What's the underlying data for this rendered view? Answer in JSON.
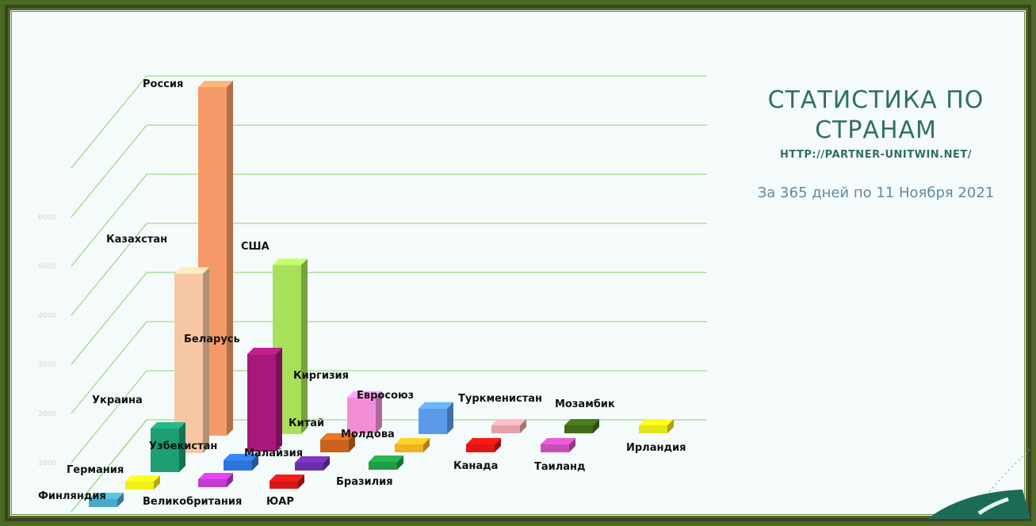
{
  "slide": {
    "title": "СТАТИСТИКА ПО СТРАНАМ",
    "url": "HTTP://PARTNER-UNITWIN.NET/",
    "period": "За 365 дней по 11 Ноября 2021"
  },
  "colors": {
    "frame_outer": "#4a6b22",
    "frame_mid": "#3f3f24",
    "background": "#f4fbfa",
    "gridline": "#8fcf6a",
    "title_text": "#2f6f66",
    "subtitle_text": "#6189a0",
    "accent_logo": "#1c6b57"
  },
  "chart_data": {
    "type": "bar",
    "style": "3d-perspective",
    "title": "",
    "xlabel": "",
    "ylabel": "",
    "ylim": [
      0,
      7000
    ],
    "grid": true,
    "legend": "none",
    "y_ticks": [
      0,
      1000,
      2000,
      3000,
      4000,
      5000,
      6000,
      7000
    ],
    "bars": [
      {
        "category": "Финляндия",
        "value": 50,
        "color": "#4aa8c8"
      },
      {
        "category": "Великобритания",
        "value": 60,
        "color": "#c23ad0"
      },
      {
        "category": "ЮАР",
        "value": 60,
        "color": "#d41818"
      },
      {
        "category": "Бразилия",
        "value": 70,
        "color": "#1e9e44"
      },
      {
        "category": "Канада",
        "value": 70,
        "color": "#e01515"
      },
      {
        "category": "Таиланд",
        "value": 50,
        "color": "#c94fb8"
      },
      {
        "category": "Ирландия",
        "value": 60,
        "color": "#e8e316"
      },
      {
        "category": "Германия",
        "value": 150,
        "color": "#f2ef1a"
      },
      {
        "category": "Малайзия",
        "value": 80,
        "color": "#6a2fa8"
      },
      {
        "category": "Молдова",
        "value": 110,
        "color": "#f0b21e"
      },
      {
        "category": "Туркменистан",
        "value": 90,
        "color": "#e8a0a8"
      },
      {
        "category": "Мозамбик",
        "value": 80,
        "color": "#3f6b19"
      },
      {
        "category": "Узбекистан",
        "value": 200,
        "color": "#2d74d8"
      },
      {
        "category": "Китай",
        "value": 250,
        "color": "#c8641e"
      },
      {
        "category": "Евросоюз",
        "value": 500,
        "color": "#5b9ae8"
      },
      {
        "category": "Украина",
        "value": 850,
        "color": "#1e9e72"
      },
      {
        "category": "Беларусь",
        "value": 1900,
        "color": "#a8187a"
      },
      {
        "category": "Киргизия",
        "value": 700,
        "color": "#f28ed8"
      },
      {
        "category": "Казахстан",
        "value": 3500,
        "color": "#f7c7a5"
      },
      {
        "category": "США",
        "value": 3300,
        "color": "#a8e05a"
      },
      {
        "category": "Россия",
        "value": 6800,
        "color": "#f59a66"
      }
    ]
  }
}
